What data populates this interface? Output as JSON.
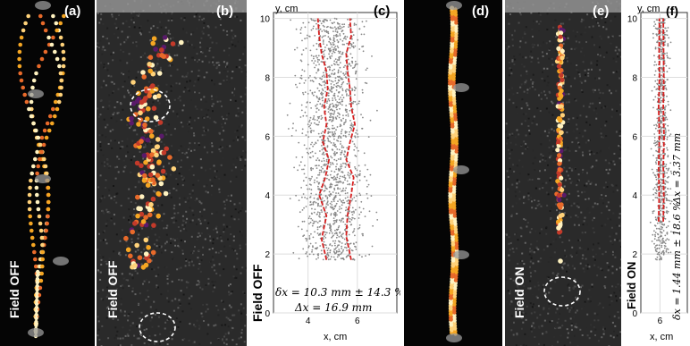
{
  "panels": {
    "a": {
      "label": "(a)",
      "caption": "Field OFF"
    },
    "b": {
      "label": "(b)",
      "caption": "Field OFF"
    },
    "c": {
      "label": "(c)",
      "caption": "Field OFF"
    },
    "d": {
      "label": "(d)"
    },
    "e": {
      "label": "(e)",
      "caption": "Field ON"
    },
    "f": {
      "label": "(f)",
      "caption": "Field ON"
    }
  },
  "colors": {
    "trace": "#d62020",
    "scatter": "#888888",
    "bubble_hot": "#f5a623",
    "bubble_dark": "#5a1a6a",
    "bubble_light": "#fff2c0"
  },
  "chart_data": [
    {
      "type": "scatter",
      "panel": "c",
      "ylabel": "y, cm",
      "xlabel": "x, cm",
      "xlim": [
        2.6,
        7.6
      ],
      "ylim": [
        0,
        10.2
      ],
      "xticks": [
        4,
        6
      ],
      "yticks": [
        0,
        2,
        4,
        6,
        8,
        10
      ],
      "grid": true,
      "band": {
        "center": 5.0,
        "width": 1.4
      },
      "left_boundary": [
        [
          4.75,
          1.8
        ],
        [
          4.55,
          2.5
        ],
        [
          4.75,
          3.3
        ],
        [
          4.45,
          4.0
        ],
        [
          4.7,
          4.6
        ],
        [
          4.85,
          5.2
        ],
        [
          4.6,
          5.8
        ],
        [
          4.75,
          6.4
        ],
        [
          4.65,
          7.0
        ],
        [
          4.8,
          7.6
        ],
        [
          4.75,
          8.2
        ],
        [
          4.55,
          8.8
        ],
        [
          4.45,
          9.4
        ],
        [
          4.4,
          10.0
        ]
      ],
      "right_boundary": [
        [
          5.75,
          1.8
        ],
        [
          5.55,
          2.6
        ],
        [
          5.6,
          3.3
        ],
        [
          5.75,
          4.0
        ],
        [
          5.85,
          4.6
        ],
        [
          5.55,
          5.2
        ],
        [
          5.7,
          5.8
        ],
        [
          5.9,
          6.4
        ],
        [
          5.75,
          7.0
        ],
        [
          5.7,
          7.6
        ],
        [
          5.6,
          8.2
        ],
        [
          5.55,
          8.8
        ],
        [
          5.75,
          9.4
        ],
        [
          5.7,
          10.0
        ]
      ],
      "annotation_1": "δx = 10.3 mm ± 14.3 %",
      "annotation_2": "Δx = 16.9 mm"
    },
    {
      "type": "scatter",
      "panel": "f",
      "ylabel": "y, cm",
      "xlabel": "x, cm",
      "xlim": [
        5.3,
        7.0
      ],
      "ylim": [
        0,
        10.2
      ],
      "xticks": [
        6
      ],
      "yticks": [
        0,
        2,
        4,
        6,
        8,
        10
      ],
      "grid": true,
      "band": {
        "center": 6.05,
        "width": 0.3
      },
      "left_boundary": [
        [
          5.95,
          3.1
        ],
        [
          5.97,
          4.0
        ],
        [
          5.95,
          5.0
        ],
        [
          5.98,
          6.0
        ],
        [
          5.95,
          7.0
        ],
        [
          5.98,
          8.0
        ],
        [
          5.97,
          9.0
        ],
        [
          5.98,
          10.0
        ]
      ],
      "right_boundary": [
        [
          6.12,
          3.1
        ],
        [
          6.14,
          4.0
        ],
        [
          6.12,
          5.0
        ],
        [
          6.15,
          6.0
        ],
        [
          6.12,
          7.0
        ],
        [
          6.14,
          8.0
        ],
        [
          6.13,
          9.0
        ],
        [
          6.12,
          10.0
        ]
      ],
      "annotation_1": "δx = 1.44 mm ± 18.6 %",
      "annotation_2": "Δx = 3.37 mm"
    }
  ]
}
